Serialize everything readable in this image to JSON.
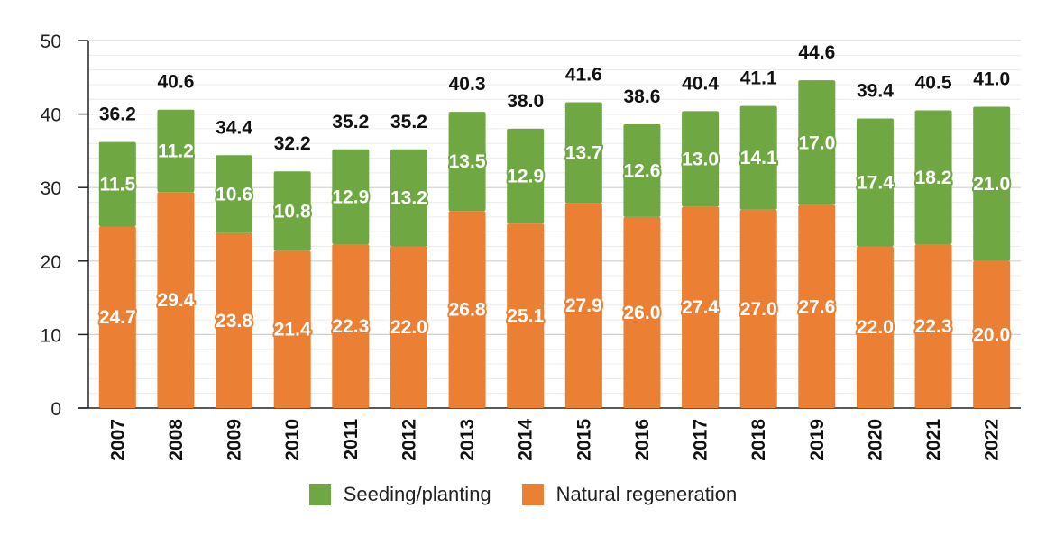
{
  "colors": {
    "seeding": "#6FA843",
    "natural": "#EB7F33",
    "grid": "#d9d9d9",
    "axis": "#222222",
    "total_label": "#111111",
    "bar_label_text": "#ffffff"
  },
  "chart_data": {
    "type": "bar",
    "stacked": true,
    "categories": [
      "2007",
      "2008",
      "2009",
      "2010",
      "2011",
      "2012",
      "2013",
      "2014",
      "2015",
      "2016",
      "2017",
      "2018",
      "2019",
      "2020",
      "2021",
      "2022"
    ],
    "series": [
      {
        "name": "Natural regeneration",
        "color_key": "natural",
        "values": [
          24.7,
          29.4,
          23.8,
          21.4,
          22.3,
          22.0,
          26.8,
          25.1,
          27.9,
          26.0,
          27.4,
          27.0,
          27.6,
          22.0,
          22.3,
          20.0
        ]
      },
      {
        "name": "Seeding/planting",
        "color_key": "seeding",
        "values": [
          11.5,
          11.2,
          10.6,
          10.8,
          12.9,
          13.2,
          13.5,
          12.9,
          13.7,
          12.6,
          13.0,
          14.1,
          17.0,
          17.4,
          18.2,
          21.0
        ]
      }
    ],
    "totals": [
      36.2,
      40.6,
      34.4,
      32.2,
      35.2,
      35.2,
      40.3,
      38.0,
      41.6,
      38.6,
      40.4,
      41.1,
      44.6,
      39.4,
      40.5,
      41.0
    ],
    "y_ticks": [
      "0",
      "10",
      "20",
      "30",
      "40",
      "50"
    ],
    "ylim": [
      0,
      50
    ],
    "title": "",
    "xlabel": "",
    "ylabel": "",
    "grid": true,
    "legend_position": "bottom"
  },
  "legend": {
    "items": [
      {
        "label": "Seeding/planting",
        "color_key": "seeding"
      },
      {
        "label": "Natural regeneration",
        "color_key": "natural"
      }
    ]
  }
}
